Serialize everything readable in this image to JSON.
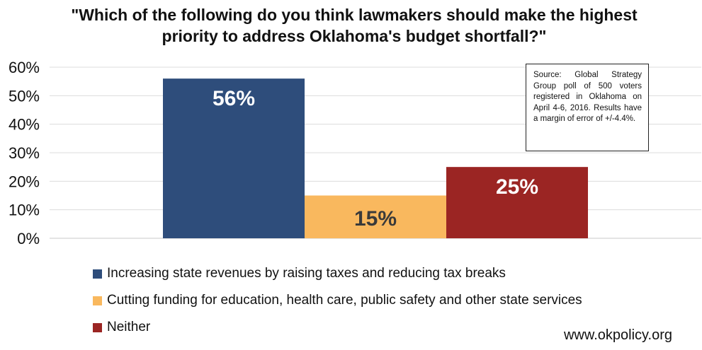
{
  "chart_data": {
    "type": "bar",
    "title_lines": [
      "\"Which of the following do you think lawmakers should make the highest",
      "priority to address Oklahoma's budget shortfall?\""
    ],
    "xlabel": "",
    "ylabel": "",
    "ylim": [
      0,
      60
    ],
    "yticks": [
      0,
      10,
      20,
      30,
      40,
      50,
      60
    ],
    "ytick_labels": [
      "0%",
      "10%",
      "20%",
      "30%",
      "40%",
      "50%",
      "60%"
    ],
    "grid": true,
    "legend_position": "bottom-left",
    "series": [
      {
        "name": "Increasing state revenues by raising taxes and reducing tax breaks",
        "value": 56,
        "label": "56%",
        "color": "#2e4d7b",
        "label_color": "#ffffff"
      },
      {
        "name": "Cutting funding for education, health care, public safety and other state services",
        "value": 15,
        "label": "15%",
        "color": "#f9b85e",
        "label_color": "#3a3a3a"
      },
      {
        "name": "Neither",
        "value": 25,
        "label": "25%",
        "color": "#9b2523",
        "label_color": "#ffffff"
      }
    ]
  },
  "source_note": "Source: Global Strategy Group poll of 500 voters registered in Oklahoma on April 4-6, 2016. Results have a margin of error of +/-4.4%.",
  "website": "www.okpolicy.org"
}
